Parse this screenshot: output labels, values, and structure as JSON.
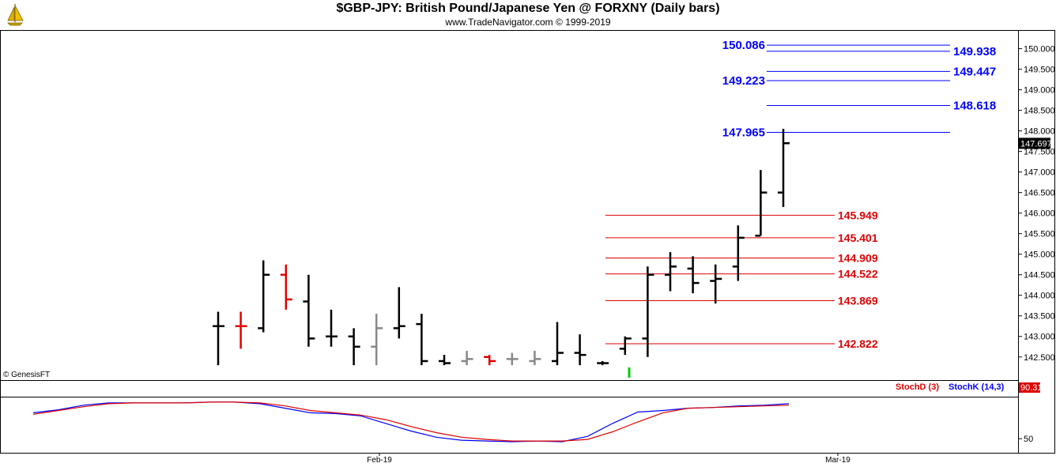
{
  "header": {
    "title": "$GBP-JPY:  British Pound/Japanese Yen @ FORXNY  (Daily bars)",
    "subtitle": "www.TradeNavigator.com © 1999-2019"
  },
  "watermark": "© GenesisFT",
  "colors": {
    "bars_black": "#000000",
    "bars_red": "#e00000",
    "bars_grey": "#888888",
    "blue_levels": "#0000ff",
    "red_levels": "#dd0000",
    "stoch_green": "#00cc00"
  },
  "chart_data": [
    {
      "type": "ohlc",
      "ylim": [
        142.3,
        150.3
      ],
      "yticks": [
        "150.000",
        "149.500",
        "149.000",
        "148.500",
        "148.000",
        "147.500",
        "147.000",
        "146.500",
        "146.000",
        "145.500",
        "145.000",
        "144.500",
        "144.000",
        "143.500",
        "143.000",
        "142.500"
      ],
      "last_price": "147.697",
      "xticks": [
        "Feb-19",
        "Mar-19"
      ],
      "bars": [
        {
          "h": 143.6,
          "l": 142.3,
          "o": 143.25,
          "c": 143.25,
          "col": "black"
        },
        {
          "h": 143.6,
          "l": 142.7,
          "o": 143.25,
          "c": 143.25,
          "col": "red"
        },
        {
          "h": 144.85,
          "l": 143.1,
          "o": 143.2,
          "c": 144.5,
          "col": "black"
        },
        {
          "h": 144.75,
          "l": 143.65,
          "o": 144.5,
          "c": 143.9,
          "col": "red"
        },
        {
          "h": 144.5,
          "l": 142.75,
          "o": 143.85,
          "c": 142.95,
          "col": "black"
        },
        {
          "h": 143.65,
          "l": 142.75,
          "o": 143.0,
          "c": 143.0,
          "col": "black"
        },
        {
          "h": 143.2,
          "l": 142.3,
          "o": 143.0,
          "c": 142.75,
          "col": "black"
        },
        {
          "h": 143.55,
          "l": 142.3,
          "o": 142.75,
          "c": 143.2,
          "col": "grey"
        },
        {
          "h": 144.2,
          "l": 142.95,
          "o": 143.2,
          "c": 143.25,
          "col": "black"
        },
        {
          "h": 143.55,
          "l": 142.3,
          "o": 143.3,
          "c": 142.4,
          "col": "black"
        },
        {
          "h": 142.55,
          "l": 142.3,
          "o": 142.4,
          "c": 142.35,
          "col": "black"
        },
        {
          "h": 142.65,
          "l": 142.3,
          "o": 142.4,
          "c": 142.45,
          "col": "grey"
        },
        {
          "h": 142.55,
          "l": 142.3,
          "o": 142.5,
          "c": 142.4,
          "col": "red"
        },
        {
          "h": 142.6,
          "l": 142.3,
          "o": 142.45,
          "c": 142.45,
          "col": "grey"
        },
        {
          "h": 142.65,
          "l": 142.3,
          "o": 142.4,
          "c": 142.45,
          "col": "grey"
        },
        {
          "h": 143.35,
          "l": 142.3,
          "o": 142.4,
          "c": 142.6,
          "col": "black"
        },
        {
          "h": 143.05,
          "l": 142.3,
          "o": 142.6,
          "c": 142.55,
          "col": "black"
        },
        {
          "h": 142.4,
          "l": 142.3,
          "o": 142.35,
          "c": 142.35,
          "col": "black"
        },
        {
          "h": 143.0,
          "l": 142.55,
          "o": 142.7,
          "c": 142.95,
          "col": "black"
        },
        {
          "h": 144.7,
          "l": 142.5,
          "o": 142.95,
          "c": 144.5,
          "col": "black"
        },
        {
          "h": 145.05,
          "l": 144.1,
          "o": 144.5,
          "c": 144.7,
          "col": "black"
        },
        {
          "h": 144.95,
          "l": 144.05,
          "o": 144.65,
          "c": 144.3,
          "col": "black"
        },
        {
          "h": 144.75,
          "l": 143.8,
          "o": 144.35,
          "c": 144.4,
          "col": "black"
        },
        {
          "h": 145.7,
          "l": 144.35,
          "o": 144.7,
          "c": 145.4,
          "col": "black"
        },
        {
          "h": 147.05,
          "l": 145.45,
          "o": 145.45,
          "c": 146.5,
          "col": "black"
        },
        {
          "h": 148.05,
          "l": 146.15,
          "o": 146.5,
          "c": 147.7,
          "col": "black"
        }
      ],
      "levels_blue": [
        {
          "label": "150.086",
          "value": 150.086,
          "side": "left"
        },
        {
          "label": "149.938",
          "value": 149.938,
          "side": "right"
        },
        {
          "label": "149.447",
          "value": 149.447,
          "side": "right"
        },
        {
          "label": "149.223",
          "value": 149.223,
          "side": "left"
        },
        {
          "label": "148.618",
          "value": 148.618,
          "side": "right"
        },
        {
          "label": "147.965",
          "value": 147.965,
          "side": "left"
        }
      ],
      "levels_red": [
        {
          "label": "145.949",
          "value": 145.949
        },
        {
          "label": "145.401",
          "value": 145.401
        },
        {
          "label": "144.909",
          "value": 144.909
        },
        {
          "label": "144.522",
          "value": 144.522
        },
        {
          "label": "143.869",
          "value": 143.869
        },
        {
          "label": "142.822",
          "value": 142.822
        }
      ]
    },
    {
      "type": "line",
      "ylim": [
        0,
        100
      ],
      "ytick": "50",
      "legend": [
        "StochD (3)",
        "StochK (14,3)"
      ],
      "last_value": "90.31",
      "series": [
        {
          "name": "StochK (14,3)",
          "color": "blue",
          "values": [
            84,
            88,
            94,
            97,
            97,
            97,
            97,
            98,
            98,
            96,
            90,
            84,
            83,
            80,
            70,
            60,
            52,
            48,
            47,
            46,
            47,
            46,
            53,
            70,
            85,
            87,
            90,
            91,
            93,
            94,
            96
          ]
        },
        {
          "name": "StochD (3)",
          "color": "red",
          "values": [
            82,
            87,
            92,
            96,
            97,
            97,
            97,
            98,
            98,
            97,
            93,
            87,
            84,
            81,
            75,
            66,
            58,
            52,
            49,
            47,
            47,
            47,
            49,
            59,
            72,
            84,
            90,
            91,
            92,
            93,
            94
          ]
        }
      ]
    }
  ]
}
